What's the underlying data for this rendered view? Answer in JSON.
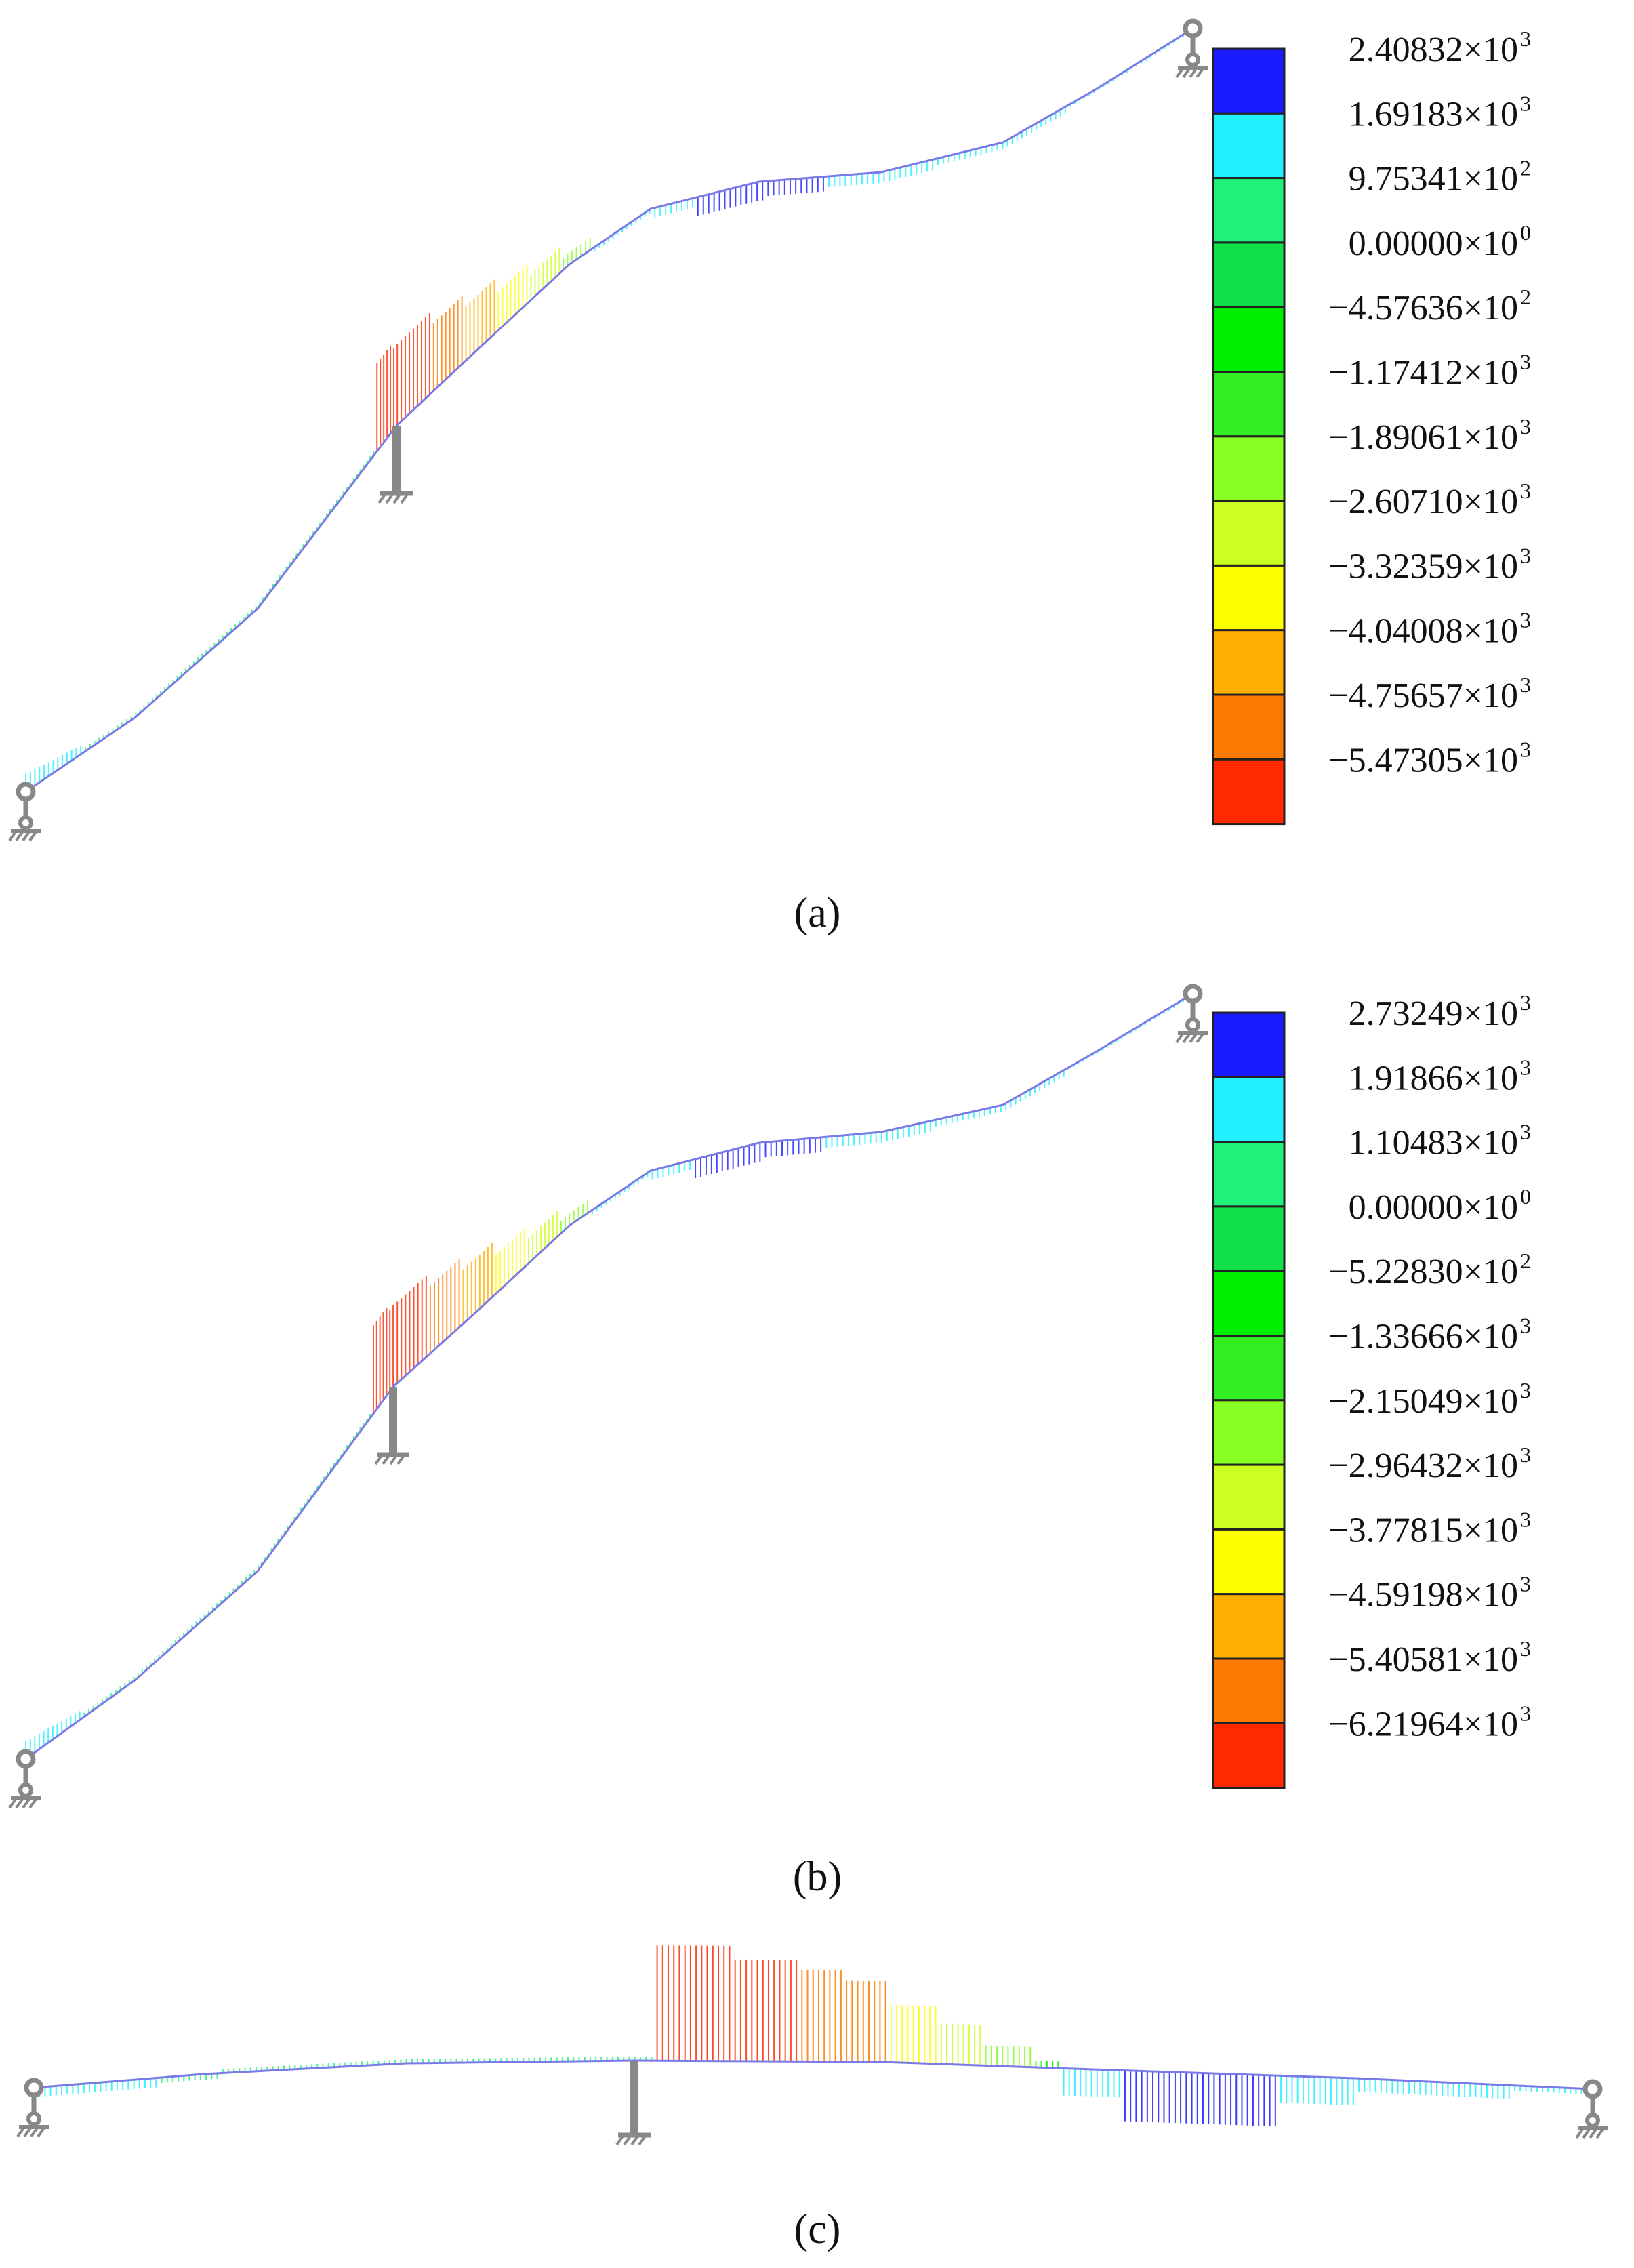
{
  "panels": [
    {
      "label": "(a)",
      "legend": {
        "entries": [
          {
            "mant": "2.40832",
            "exp": "3"
          },
          {
            "mant": "1.69183",
            "exp": "3"
          },
          {
            "mant": "9.75341",
            "exp": "2"
          },
          {
            "mant": "0.00000",
            "exp": "0"
          },
          {
            "mant": "−4.57636",
            "exp": "2"
          },
          {
            "mant": "−1.17412",
            "exp": "3"
          },
          {
            "mant": "−1.89061",
            "exp": "3"
          },
          {
            "mant": "−2.60710",
            "exp": "3"
          },
          {
            "mant": "−3.32359",
            "exp": "3"
          },
          {
            "mant": "−4.04008",
            "exp": "3"
          },
          {
            "mant": "−4.75657",
            "exp": "3"
          },
          {
            "mant": "−5.47305",
            "exp": "3"
          }
        ],
        "colors": [
          "#1a1aff",
          "#22f0ff",
          "#1ff27a",
          "#10e04a",
          "#00ee00",
          "#33ee22",
          "#88ff22",
          "#ccff22",
          "#ffff00",
          "#ffb000",
          "#ff7a00",
          "#ff2a00"
        ]
      }
    },
    {
      "label": "(b)",
      "legend": {
        "entries": [
          {
            "mant": "2.73249",
            "exp": "3"
          },
          {
            "mant": "1.91866",
            "exp": "3"
          },
          {
            "mant": "1.10483",
            "exp": "3"
          },
          {
            "mant": "0.00000",
            "exp": "0"
          },
          {
            "mant": "−5.22830",
            "exp": "2"
          },
          {
            "mant": "−1.33666",
            "exp": "3"
          },
          {
            "mant": "−2.15049",
            "exp": "3"
          },
          {
            "mant": "−2.96432",
            "exp": "3"
          },
          {
            "mant": "−3.77815",
            "exp": "3"
          },
          {
            "mant": "−4.59198",
            "exp": "3"
          },
          {
            "mant": "−5.40581",
            "exp": "3"
          },
          {
            "mant": "−6.21964",
            "exp": "3"
          }
        ],
        "colors": [
          "#1a1aff",
          "#22f0ff",
          "#1ff27a",
          "#10e04a",
          "#00ee00",
          "#33ee22",
          "#88ff22",
          "#ccff22",
          "#ffff00",
          "#ffb000",
          "#ff7a00",
          "#ff2a00"
        ]
      }
    },
    {
      "label": "(c)"
    }
  ],
  "times_symbol": "×10",
  "support_color": "#888888"
}
